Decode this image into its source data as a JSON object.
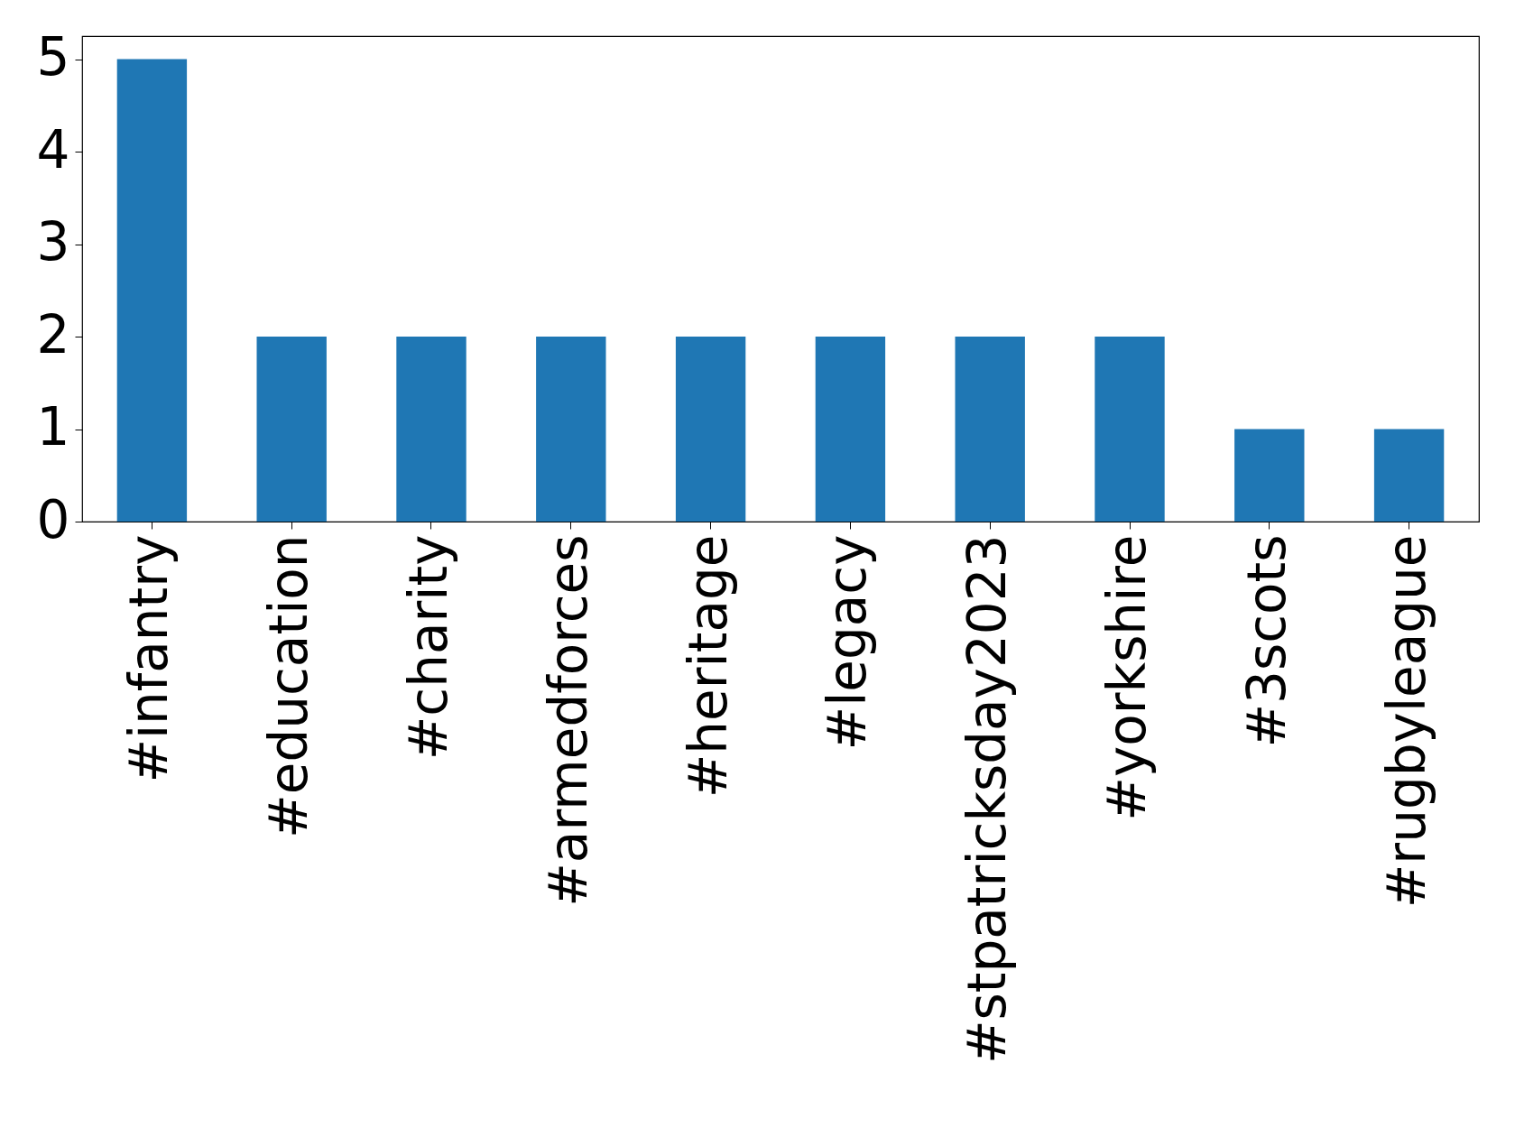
{
  "chart_data": {
    "type": "bar",
    "categories": [
      "#infantry",
      "#education",
      "#charity",
      "#armedforces",
      "#heritage",
      "#legacy",
      "#stpatricksday2023",
      "#yorkshire",
      "#3scots",
      "#rugbyleague"
    ],
    "values": [
      5,
      2,
      2,
      2,
      2,
      2,
      2,
      2,
      1,
      1
    ],
    "color": "#1f77b4",
    "ylim": [
      0,
      5.25
    ],
    "yticks": [
      0,
      1,
      2,
      3,
      4,
      5
    ]
  }
}
